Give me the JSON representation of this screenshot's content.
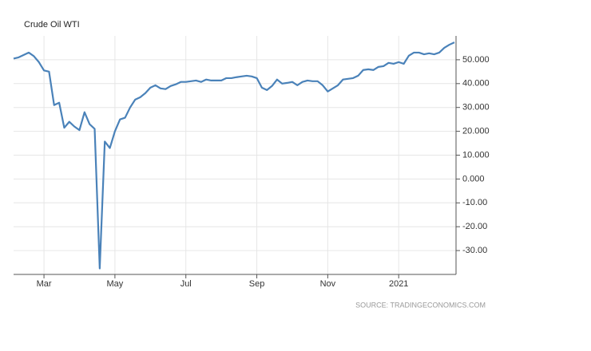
{
  "chart_data": {
    "type": "line",
    "title": "Crude Oil WTI",
    "source": "SOURCE: TRADINGECONOMICS.COM",
    "categories": [
      null,
      null,
      null,
      null,
      null,
      null,
      "Mar",
      null,
      null,
      null,
      null,
      null,
      null,
      null,
      null,
      null,
      null,
      null,
      null,
      null,
      "May",
      null,
      null,
      null,
      null,
      null,
      null,
      null,
      null,
      null,
      null,
      null,
      null,
      null,
      "Jul",
      null,
      null,
      null,
      null,
      null,
      null,
      null,
      null,
      null,
      null,
      null,
      null,
      null,
      "Sep",
      null,
      null,
      null,
      null,
      null,
      null,
      null,
      null,
      null,
      null,
      null,
      null,
      null,
      "Nov",
      null,
      null,
      null,
      null,
      null,
      null,
      null,
      null,
      null,
      null,
      null,
      null,
      null,
      "2021",
      null,
      null,
      null,
      null,
      null,
      null,
      null,
      null,
      null,
      null,
      null
    ],
    "series": [
      {
        "name": "Crude Oil WTI",
        "color": "#4a82b9",
        "values": [
          50.5,
          51,
          52,
          53,
          51.5,
          49,
          45.5,
          45,
          31,
          32,
          21.5,
          24,
          22,
          20.5,
          28,
          23,
          21,
          -37.5,
          15.7,
          13,
          20,
          25,
          25.7,
          30,
          33.3,
          34.3,
          36,
          38.3,
          39.3,
          38,
          37.7,
          39,
          39.7,
          40.7,
          40.7,
          41,
          41.3,
          40.7,
          41.7,
          41.3,
          41.3,
          41.3,
          42.3,
          42.3,
          42.7,
          43,
          43.3,
          43,
          42.3,
          38.3,
          37.3,
          39,
          41.7,
          40,
          40.3,
          40.7,
          39.3,
          40.7,
          41.3,
          41,
          41,
          39.3,
          36.7,
          38,
          39.3,
          41.7,
          42,
          42.3,
          43.3,
          45.7,
          46,
          45.7,
          47,
          47.3,
          48.7,
          48.3,
          49,
          48.3,
          51.7,
          53,
          53,
          52.3,
          52.7,
          52.3,
          53,
          55,
          56.3,
          57.3
        ]
      }
    ],
    "ylim": [
      -40,
      60
    ],
    "yticks": [
      {
        "value": -30,
        "label": "-30.00"
      },
      {
        "value": -20,
        "label": "-20.00"
      },
      {
        "value": -10,
        "label": "-10.00"
      },
      {
        "value": 0,
        "label": "0.000"
      },
      {
        "value": 10,
        "label": "10.000"
      },
      {
        "value": 20,
        "label": "20.000"
      },
      {
        "value": 30,
        "label": "30.000"
      },
      {
        "value": 40,
        "label": "40.000"
      },
      {
        "value": 50,
        "label": "50.000"
      }
    ],
    "grid": true
  }
}
